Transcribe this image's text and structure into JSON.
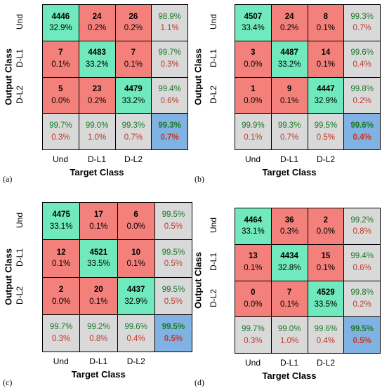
{
  "chart_data": [
    {
      "type": "heatmap",
      "panel_label": "(a)",
      "row_labels": [
        "Und",
        "D-L1",
        "D-L2"
      ],
      "col_labels": [
        "Und",
        "D-L1",
        "D-L2"
      ],
      "xlabel": "Target Class",
      "ylabel": "Output Class",
      "matrix": [
        [
          {
            "count": "4446",
            "pct": "32.9%"
          },
          {
            "count": "24",
            "pct": "0.2%"
          },
          {
            "count": "26",
            "pct": "0.2%"
          }
        ],
        [
          {
            "count": "7",
            "pct": "0.1%"
          },
          {
            "count": "4483",
            "pct": "33.2%"
          },
          {
            "count": "7",
            "pct": "0.1%"
          }
        ],
        [
          {
            "count": "5",
            "pct": "0.0%"
          },
          {
            "count": "23",
            "pct": "0.2%"
          },
          {
            "count": "4479",
            "pct": "33.2%"
          }
        ]
      ],
      "row_summary": [
        [
          "98.9%",
          "1.1%"
        ],
        [
          "99.7%",
          "0.3%"
        ],
        [
          "99.4%",
          "0.6%"
        ]
      ],
      "col_summary": [
        [
          "99.7%",
          "0.3%"
        ],
        [
          "99.0%",
          "1.0%"
        ],
        [
          "99.3%",
          "0.7%"
        ]
      ],
      "total": [
        "99.3%",
        "0.7%"
      ]
    },
    {
      "type": "heatmap",
      "panel_label": "(b)",
      "row_labels": [
        "Und",
        "D-L1",
        "D-L2"
      ],
      "col_labels": [
        "Und",
        "D-L1",
        "D-L2"
      ],
      "xlabel": "Target Class",
      "ylabel": "Output Class",
      "matrix": [
        [
          {
            "count": "4507",
            "pct": "33.4%"
          },
          {
            "count": "24",
            "pct": "0.2%"
          },
          {
            "count": "8",
            "pct": "0.1%"
          }
        ],
        [
          {
            "count": "3",
            "pct": "0.0%"
          },
          {
            "count": "4487",
            "pct": "33.2%"
          },
          {
            "count": "14",
            "pct": "0.1%"
          }
        ],
        [
          {
            "count": "1",
            "pct": "0.0%"
          },
          {
            "count": "9",
            "pct": "0.1%"
          },
          {
            "count": "4447",
            "pct": "32.9%"
          }
        ]
      ],
      "row_summary": [
        [
          "99.3%",
          "0.7%"
        ],
        [
          "99.6%",
          "0.4%"
        ],
        [
          "99.8%",
          "0.2%"
        ]
      ],
      "col_summary": [
        [
          "99.9%",
          "0.1%"
        ],
        [
          "99.3%",
          "0.7%"
        ],
        [
          "99.5%",
          "0.5%"
        ]
      ],
      "total": [
        "99.6%",
        "0.4%"
      ]
    },
    {
      "type": "heatmap",
      "panel_label": "(c)",
      "row_labels": [
        "Und",
        "D-L1",
        "D-L2"
      ],
      "col_labels": [
        "Und",
        "D-L1",
        "D-L2"
      ],
      "xlabel": "Target Class",
      "ylabel": "Output Class",
      "matrix": [
        [
          {
            "count": "4475",
            "pct": "33.1%"
          },
          {
            "count": "17",
            "pct": "0.1%"
          },
          {
            "count": "6",
            "pct": "0.0%"
          }
        ],
        [
          {
            "count": "12",
            "pct": "0.1%"
          },
          {
            "count": "4521",
            "pct": "33.5%"
          },
          {
            "count": "10",
            "pct": "0.1%"
          }
        ],
        [
          {
            "count": "2",
            "pct": "0.0%"
          },
          {
            "count": "20",
            "pct": "0.1%"
          },
          {
            "count": "4437",
            "pct": "32.9%"
          }
        ]
      ],
      "row_summary": [
        [
          "99.5%",
          "0.5%"
        ],
        [
          "99.5%",
          "0.5%"
        ],
        [
          "99.5%",
          "0.5%"
        ]
      ],
      "col_summary": [
        [
          "99.7%",
          "0.3%"
        ],
        [
          "99.2%",
          "0.8%"
        ],
        [
          "99.6%",
          "0.4%"
        ]
      ],
      "total": [
        "99.5%",
        "0.5%"
      ]
    },
    {
      "type": "heatmap",
      "panel_label": "(d)",
      "row_labels": [
        "Und",
        "D-L1",
        "D-L2"
      ],
      "col_labels": [
        "Und",
        "D-L1",
        "D-L2"
      ],
      "xlabel": "Target Class",
      "ylabel": "Output Class",
      "matrix": [
        [
          {
            "count": "4464",
            "pct": "33.1%"
          },
          {
            "count": "36",
            "pct": "0.3%"
          },
          {
            "count": "2",
            "pct": "0.0%"
          }
        ],
        [
          {
            "count": "13",
            "pct": "0.1%"
          },
          {
            "count": "4434",
            "pct": "32.8%"
          },
          {
            "count": "15",
            "pct": "0.1%"
          }
        ],
        [
          {
            "count": "0",
            "pct": "0.0%"
          },
          {
            "count": "7",
            "pct": "0.1%"
          },
          {
            "count": "4529",
            "pct": "33.5%"
          }
        ]
      ],
      "row_summary": [
        [
          "99.2%",
          "0.8%"
        ],
        [
          "99.4%",
          "0.6%"
        ],
        [
          "99.8%",
          "0.2%"
        ]
      ],
      "col_summary": [
        [
          "99.7%",
          "0.3%"
        ],
        [
          "99.0%",
          "1.0%"
        ],
        [
          "99.6%",
          "0.4%"
        ]
      ],
      "total": [
        "99.5%",
        "0.5%"
      ]
    }
  ],
  "colors": {
    "diagonal": "#6fe9bd",
    "off_diagonal": "#f4807b",
    "summary": "#d9d9d9",
    "total": "#80b3e3",
    "positive_text": "#1a7a2a",
    "negative_text": "#c0392b"
  }
}
